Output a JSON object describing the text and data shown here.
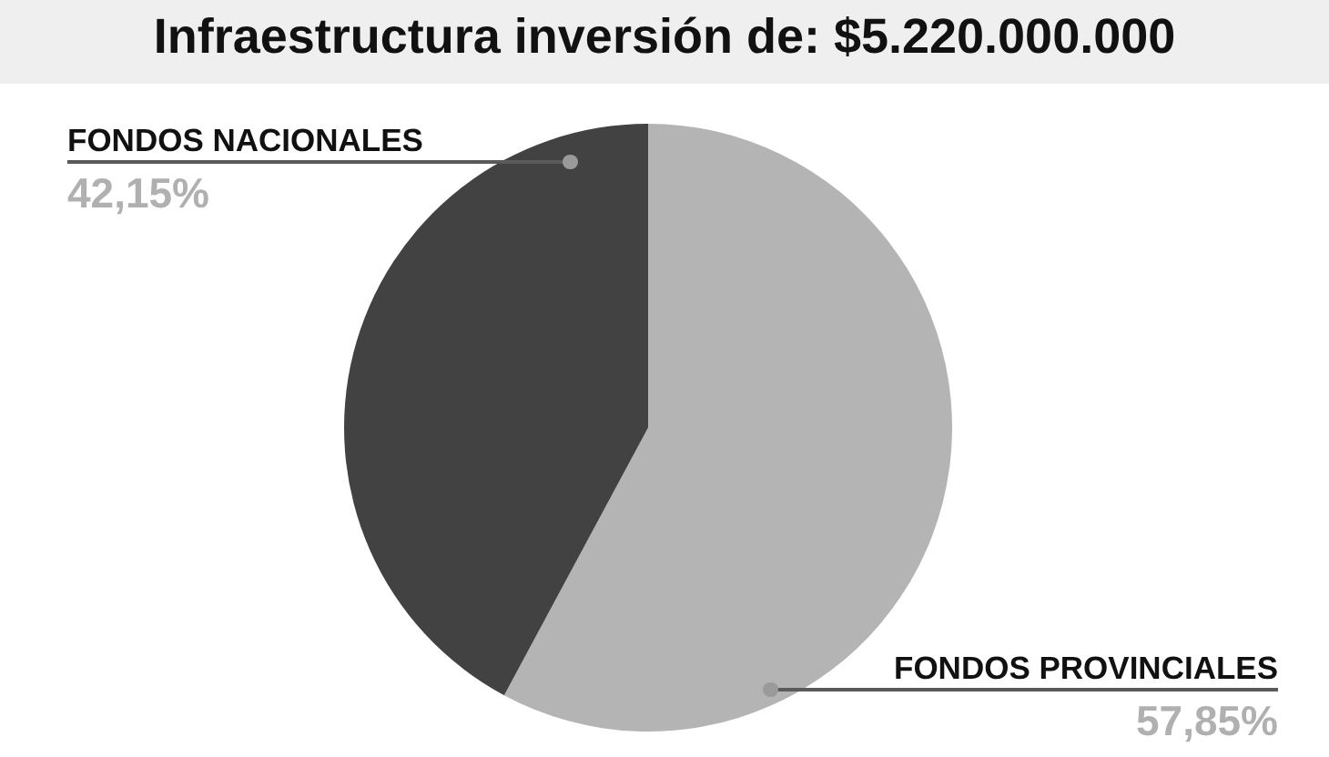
{
  "chart_data": {
    "type": "pie",
    "title": "Infraestructura inversión de: $5.220.000.000",
    "categories": [
      "FONDOS PROVINCIALES",
      "FONDOS NACIONALES"
    ],
    "values": [
      57.85,
      42.15
    ],
    "colors": [
      "#b4b4b4",
      "#424242"
    ],
    "value_labels": [
      "57,85%",
      "42,15%"
    ]
  }
}
